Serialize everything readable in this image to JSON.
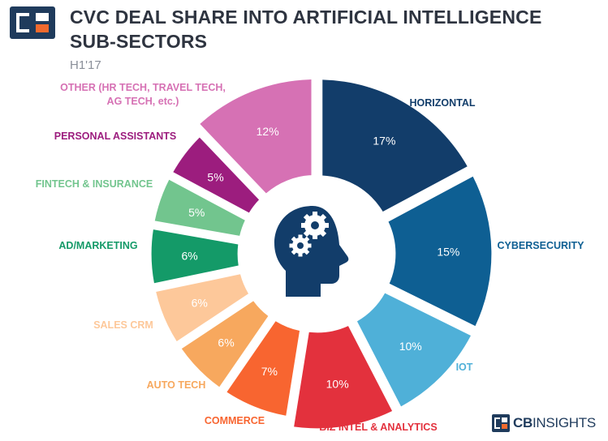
{
  "header": {
    "title": "CVC DEAL SHARE INTO ARTIFICIAL INTELLIGENCE SUB-SECTORS",
    "subtitle": "H1'17"
  },
  "footer": {
    "brand_bold": "CB",
    "brand_light": "INSIGHTS"
  },
  "colors": {
    "brand_navy": "#1f3b5c",
    "brand_orange": "#f26a2e"
  },
  "center_icon": "head-with-gears-icon",
  "chart_data": {
    "type": "pie",
    "variant": "exploded-donut",
    "unit": "%",
    "slices": [
      {
        "label": "HORIZONTAL",
        "value": 17,
        "display": "17%",
        "color": "#123d6a"
      },
      {
        "label": "CYBERSECURITY",
        "value": 15,
        "display": "15%",
        "color": "#0e5f93"
      },
      {
        "label": "IOT",
        "value": 10,
        "display": "10%",
        "color": "#4fb0d8"
      },
      {
        "label": "BIZ INTEL & ANALYTICS",
        "value": 10,
        "display": "10%",
        "color": "#e3313d"
      },
      {
        "label": "COMMERCE",
        "value": 7,
        "display": "7%",
        "color": "#f86530"
      },
      {
        "label": "AUTO TECH",
        "value": 6,
        "display": "6%",
        "color": "#f7a85e"
      },
      {
        "label": "SALES CRM",
        "value": 6,
        "display": "6%",
        "color": "#fdc89a"
      },
      {
        "label": "AD/MARKETING",
        "value": 6,
        "display": "6%",
        "color": "#149a68"
      },
      {
        "label": "FINTECH & INSURANCE",
        "value": 5,
        "display": "5%",
        "color": "#72c58e"
      },
      {
        "label": "PERSONAL ASSISTANTS",
        "value": 5,
        "display": "5%",
        "color": "#9c1d7e"
      },
      {
        "label": "OTHER (HR TECH, TRAVEL TECH, AG TECH, etc.)",
        "value": 12,
        "display": "12%",
        "color": "#d671b4"
      }
    ]
  }
}
